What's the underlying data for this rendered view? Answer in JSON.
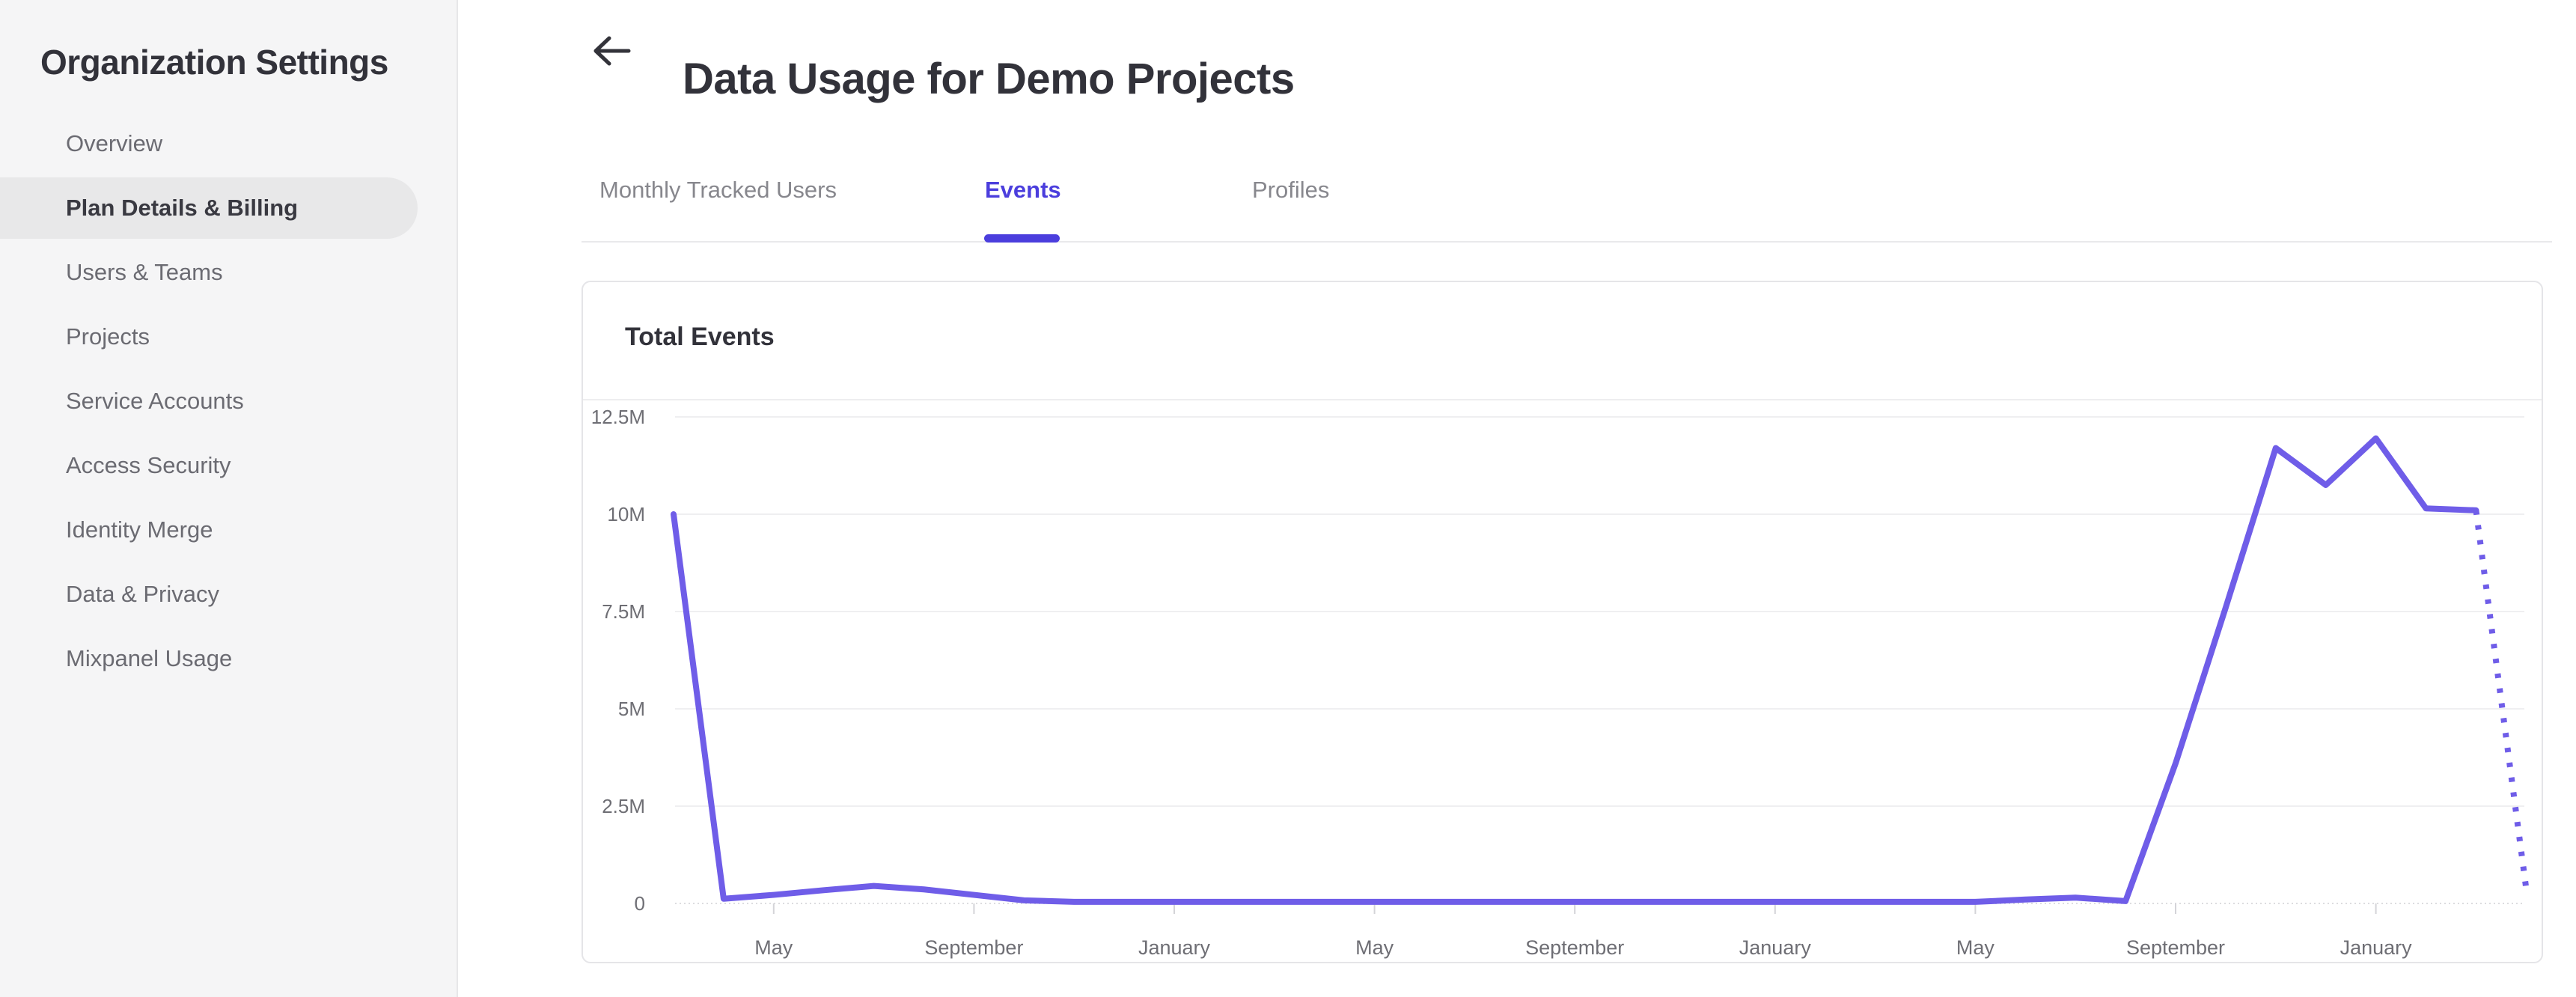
{
  "sidebar": {
    "title": "Organization Settings",
    "items": [
      {
        "label": "Overview",
        "active": false
      },
      {
        "label": "Plan Details & Billing",
        "active": true
      },
      {
        "label": "Users & Teams",
        "active": false
      },
      {
        "label": "Projects",
        "active": false
      },
      {
        "label": "Service Accounts",
        "active": false
      },
      {
        "label": "Access Security",
        "active": false
      },
      {
        "label": "Identity Merge",
        "active": false
      },
      {
        "label": "Data & Privacy",
        "active": false
      },
      {
        "label": "Mixpanel Usage",
        "active": false
      }
    ]
  },
  "header": {
    "back_icon": "arrow-left",
    "title": "Data Usage for Demo Projects"
  },
  "tabs": [
    {
      "label": "Monthly Tracked Users",
      "active": false
    },
    {
      "label": "Events",
      "active": true
    },
    {
      "label": "Profiles",
      "active": false
    }
  ],
  "card": {
    "title": "Total Events"
  },
  "colors": {
    "accent": "#4b3edd",
    "chart_line": "#6f5de8",
    "sidebar_bg": "#f5f5f6",
    "sidebar_active_bg": "#e8e8e9",
    "text_dark": "#32323a",
    "text_gray": "#6b6b72",
    "tab_inactive": "#87878d",
    "gridline": "#efeff1",
    "axis_text": "#6e6e74",
    "card_border": "#e5e5e8"
  },
  "chart_data": {
    "type": "line",
    "title": "Total Events",
    "unit": "events",
    "ylim_millions": [
      0,
      12.5
    ],
    "grid": true,
    "legend": "none",
    "y_tick_labels": [
      "12.5M",
      "10M",
      "7.5M",
      "5M",
      "2.5M",
      "0"
    ],
    "y_tick_values_millions": [
      12.5,
      10,
      7.5,
      5,
      2.5,
      0
    ],
    "x_tick_labels": [
      "May",
      "September",
      "January",
      "May",
      "September",
      "January",
      "May",
      "September",
      "January"
    ],
    "x_tick_month_indices": [
      2,
      6,
      10,
      14,
      18,
      22,
      26,
      30,
      34
    ],
    "series": [
      {
        "name": "Total Events",
        "style": "solid",
        "points": [
          {
            "month_index": 0,
            "month": "Mar Y1",
            "value_millions": 10.0
          },
          {
            "month_index": 1,
            "month": "Apr Y1",
            "value_millions": 0.12
          },
          {
            "month_index": 2,
            "month": "May Y1",
            "value_millions": 0.22
          },
          {
            "month_index": 3,
            "month": "Jun Y1",
            "value_millions": 0.34
          },
          {
            "month_index": 4,
            "month": "Jul Y1",
            "value_millions": 0.45
          },
          {
            "month_index": 5,
            "month": "Aug Y1",
            "value_millions": 0.36
          },
          {
            "month_index": 6,
            "month": "Sep Y1",
            "value_millions": 0.22
          },
          {
            "month_index": 7,
            "month": "Oct Y1",
            "value_millions": 0.08
          },
          {
            "month_index": 8,
            "month": "Nov Y1",
            "value_millions": 0.04
          },
          {
            "month_index": 9,
            "month": "Dec Y1",
            "value_millions": 0.04
          },
          {
            "month_index": 10,
            "month": "Jan Y2",
            "value_millions": 0.04
          },
          {
            "month_index": 11,
            "month": "Feb Y2",
            "value_millions": 0.04
          },
          {
            "month_index": 12,
            "month": "Mar Y2",
            "value_millions": 0.04
          },
          {
            "month_index": 13,
            "month": "Apr Y2",
            "value_millions": 0.04
          },
          {
            "month_index": 14,
            "month": "May Y2",
            "value_millions": 0.04
          },
          {
            "month_index": 15,
            "month": "Jun Y2",
            "value_millions": 0.04
          },
          {
            "month_index": 16,
            "month": "Jul Y2",
            "value_millions": 0.04
          },
          {
            "month_index": 17,
            "month": "Aug Y2",
            "value_millions": 0.04
          },
          {
            "month_index": 18,
            "month": "Sep Y2",
            "value_millions": 0.04
          },
          {
            "month_index": 19,
            "month": "Oct Y2",
            "value_millions": 0.04
          },
          {
            "month_index": 20,
            "month": "Nov Y2",
            "value_millions": 0.04
          },
          {
            "month_index": 21,
            "month": "Dec Y2",
            "value_millions": 0.04
          },
          {
            "month_index": 22,
            "month": "Jan Y3",
            "value_millions": 0.04
          },
          {
            "month_index": 23,
            "month": "Feb Y3",
            "value_millions": 0.04
          },
          {
            "month_index": 24,
            "month": "Mar Y3",
            "value_millions": 0.04
          },
          {
            "month_index": 25,
            "month": "Apr Y3",
            "value_millions": 0.04
          },
          {
            "month_index": 26,
            "month": "May Y3",
            "value_millions": 0.04
          },
          {
            "month_index": 27,
            "month": "Jun Y3",
            "value_millions": 0.1
          },
          {
            "month_index": 28,
            "month": "Jul Y3",
            "value_millions": 0.15
          },
          {
            "month_index": 29,
            "month": "Aug Y3",
            "value_millions": 0.06
          },
          {
            "month_index": 30,
            "month": "Sep Y3",
            "value_millions": 3.6
          },
          {
            "month_index": 31,
            "month": "Oct Y3",
            "value_millions": 7.6
          },
          {
            "month_index": 32,
            "month": "Nov Y3",
            "value_millions": 11.7
          },
          {
            "month_index": 33,
            "month": "Dec Y3",
            "value_millions": 10.75
          },
          {
            "month_index": 34,
            "month": "Jan Y4",
            "value_millions": 11.95
          },
          {
            "month_index": 35,
            "month": "Feb Y4",
            "value_millions": 10.15
          },
          {
            "month_index": 36,
            "month": "Mar Y4",
            "value_millions": 10.1
          }
        ]
      },
      {
        "name": "Total Events (projected)",
        "style": "dotted",
        "points": [
          {
            "month_index": 36,
            "month": "Mar Y4",
            "value_millions": 10.1
          },
          {
            "month_index": 37,
            "month": "Apr Y4",
            "value_millions": 0.4
          }
        ]
      }
    ]
  }
}
